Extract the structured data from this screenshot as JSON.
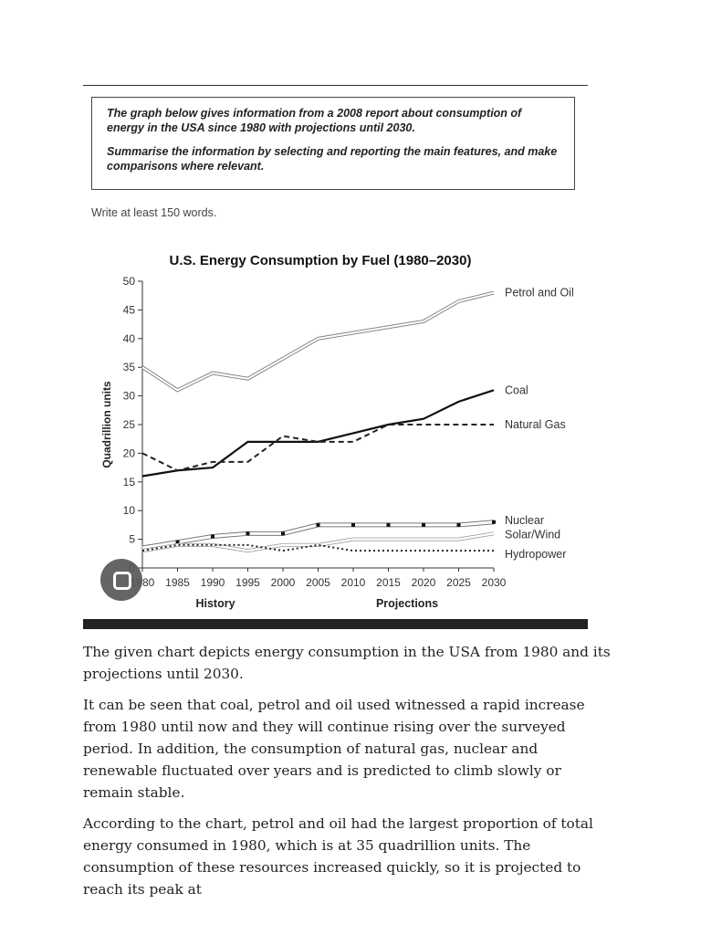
{
  "task": {
    "line1": "The graph below gives information from a 2008 report about consumption of energy in the USA since 1980 with projections until 2030.",
    "line2": "Summarise the information by selecting and reporting the main features, and make comparisons where relevant.",
    "word_count": "Write at least 150 words."
  },
  "chart_data": {
    "type": "line",
    "title": "U.S. Energy Consumption by Fuel (1980–2030)",
    "ylabel": "Quadrillion units",
    "xlabel_left": "History",
    "xlabel_right": "Projections",
    "x": [
      1980,
      1985,
      1990,
      1995,
      2000,
      2005,
      2010,
      2015,
      2020,
      2025,
      2030
    ],
    "ylim": [
      0,
      50
    ],
    "yticks": [
      0,
      5,
      10,
      15,
      20,
      25,
      30,
      35,
      40,
      45,
      50
    ],
    "grid": false,
    "legend": "end-of-line labels",
    "series": [
      {
        "name": "Petrol and Oil",
        "values": [
          35,
          31,
          34,
          33,
          36.5,
          40,
          41,
          42,
          43,
          46.5,
          48
        ]
      },
      {
        "name": "Coal",
        "values": [
          16,
          17,
          17.5,
          22,
          22,
          22,
          23.5,
          25,
          26,
          29,
          31
        ]
      },
      {
        "name": "Natural Gas",
        "values": [
          20,
          17,
          18.5,
          18.5,
          23,
          22,
          22,
          25,
          25,
          25,
          25
        ]
      },
      {
        "name": "Nuclear",
        "values": [
          3.5,
          4.5,
          5.5,
          6,
          6,
          7.5,
          7.5,
          7.5,
          7.5,
          7.5,
          8
        ]
      },
      {
        "name": "Solar/Wind",
        "values": [
          3,
          4,
          4,
          3,
          4,
          4,
          5,
          5,
          5,
          5,
          6
        ]
      },
      {
        "name": "Hydropower",
        "values": [
          3,
          4,
          4,
          4,
          3,
          4,
          3,
          3,
          3,
          3,
          3
        ]
      }
    ]
  },
  "essay": {
    "p1": "The given chart depicts energy consumption in the USA from 1980 and its projections until 2030.",
    "p2": "It can be seen that coal, petrol and oil used witnessed a rapid increase from 1980 until now and they will continue rising over the surveyed period. In addition, the consumption of natural gas, nuclear and renewable fluctuated over years and is predicted to climb slowly or remain stable.",
    "p3": "According to the chart, petrol and oil had the largest proportion of total energy consumed in 1980, which is at 35 quadrillion units. The consumption of these resources increased quickly, so it is projected to reach its peak at"
  }
}
